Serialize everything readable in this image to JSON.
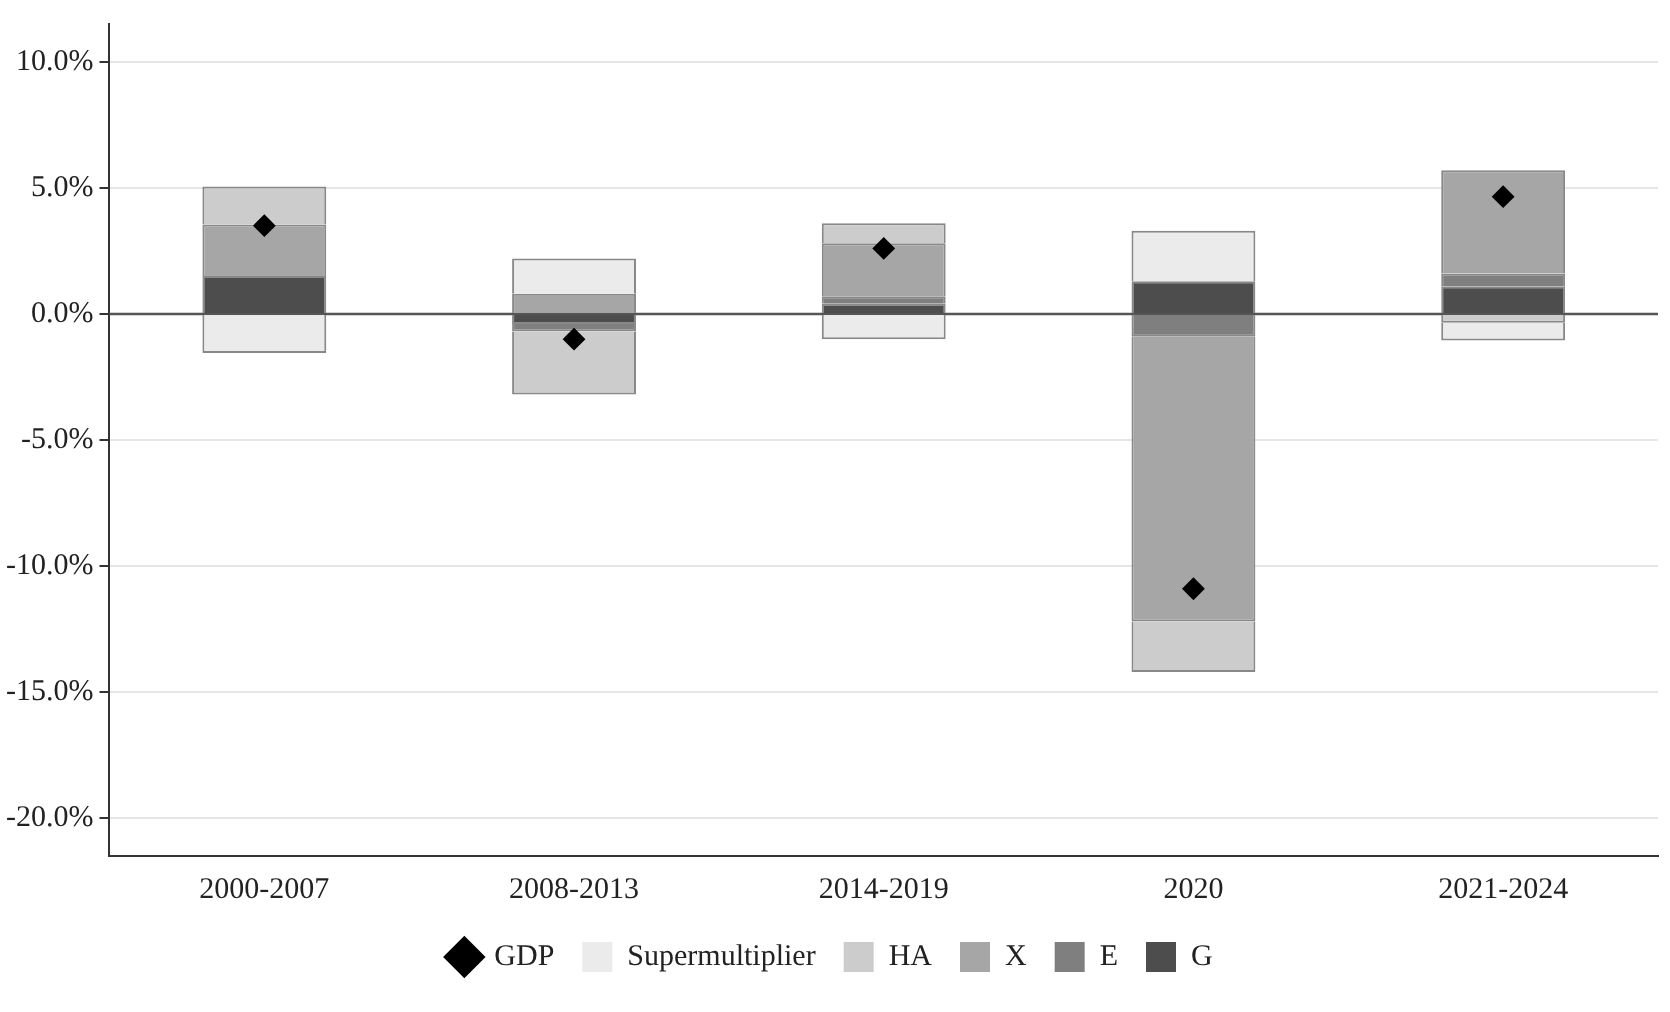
{
  "chart_data": {
    "type": "bar",
    "stacked": true,
    "categories": [
      "2000-2007",
      "2008-2013",
      "2014-2019",
      "2020",
      "2021-2024"
    ],
    "series": [
      {
        "name": "G",
        "color": "#4d4d4d",
        "values": [
          1.5,
          -0.4,
          0.4,
          1.3,
          1.1
        ]
      },
      {
        "name": "E",
        "color": "#7f7f7f",
        "values": [
          0,
          -0.3,
          0.3,
          -0.9,
          0.5
        ]
      },
      {
        "name": "X",
        "color": "#a6a6a6",
        "values": [
          2.05,
          0.8,
          2.1,
          -11.3,
          4.1
        ]
      },
      {
        "name": "HA",
        "color": "#cccccc",
        "values": [
          1.5,
          -2.5,
          0.8,
          -2.0,
          -0.35
        ]
      },
      {
        "name": "Supermultiplier",
        "color": "#ebebeb",
        "values": [
          -1.55,
          1.4,
          -1.0,
          2.0,
          -0.7
        ]
      },
      {
        "name": "GDP",
        "type": "scatter",
        "color": "#000000",
        "marker": "diamond",
        "values": [
          3.5,
          -1.0,
          2.6,
          -10.9,
          4.65
        ]
      }
    ],
    "ylim": [
      -21.5,
      11.5
    ],
    "yticks": [
      {
        "value": -20,
        "label": "-20.0%"
      },
      {
        "value": -15,
        "label": "-15.0%"
      },
      {
        "value": -10,
        "label": "-10.0%"
      },
      {
        "value": -5,
        "label": "-5.0%"
      },
      {
        "value": 0,
        "label": "0.0%"
      },
      {
        "value": 5,
        "label": "5.0%"
      },
      {
        "value": 10,
        "label": "10.0%"
      }
    ],
    "grid": "y",
    "legend": "bottom",
    "ref_lines": [
      {
        "axis": "y",
        "value": 0,
        "color": "#555555"
      }
    ]
  }
}
